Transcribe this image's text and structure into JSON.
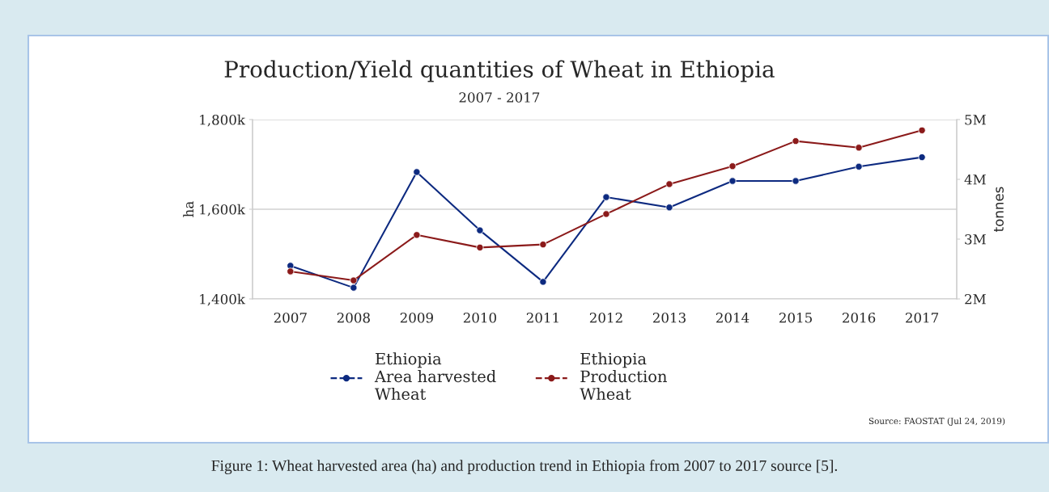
{
  "chart_data": {
    "type": "line",
    "title": "Production/Yield quantities of Wheat in Ethiopia",
    "subtitle": "2007 - 2017",
    "ylabel": "ha",
    "y2label": "tonnes",
    "categories": [
      "2007",
      "2008",
      "2009",
      "2010",
      "2011",
      "2012",
      "2013",
      "2014",
      "2015",
      "2016",
      "2017"
    ],
    "series": [
      {
        "name": "Ethiopia\nArea harvested\nWheat",
        "color": "#0d2a80",
        "values": [
          1474,
          1425,
          1683,
          1553,
          1438,
          1627,
          1604,
          1663,
          1663,
          1695,
          1716
        ]
      },
      {
        "name": "Ethiopia\nProduction\nWheat",
        "color": "#8b1a1a",
        "axis": "y2",
        "values": [
          2.46,
          2.31,
          3.07,
          2.86,
          2.91,
          3.42,
          3.92,
          4.22,
          4.64,
          4.53,
          4.82
        ]
      }
    ],
    "ylim": [
      1400,
      1800
    ],
    "yticks": [
      {
        "value": 1400,
        "label": "1,400k"
      },
      {
        "value": 1600,
        "label": "1,600k"
      },
      {
        "value": 1800,
        "label": "1,800k"
      }
    ],
    "y2lim": [
      2,
      5
    ],
    "y2ticks": [
      {
        "value": 2,
        "label": "2M"
      },
      {
        "value": 3,
        "label": "3M"
      },
      {
        "value": 4,
        "label": "4M"
      },
      {
        "value": 5,
        "label": "5M"
      }
    ],
    "grid": "y",
    "legend": "bottom",
    "marker": "circle",
    "line_style": "solid",
    "annotations": [
      "Source: FAOSTAT (Jul 24, 2019)",
      "Figure 1: Wheat harvested area (ha) and production trend in Ethiopia from 2007 to 2017 source [5]."
    ]
  }
}
